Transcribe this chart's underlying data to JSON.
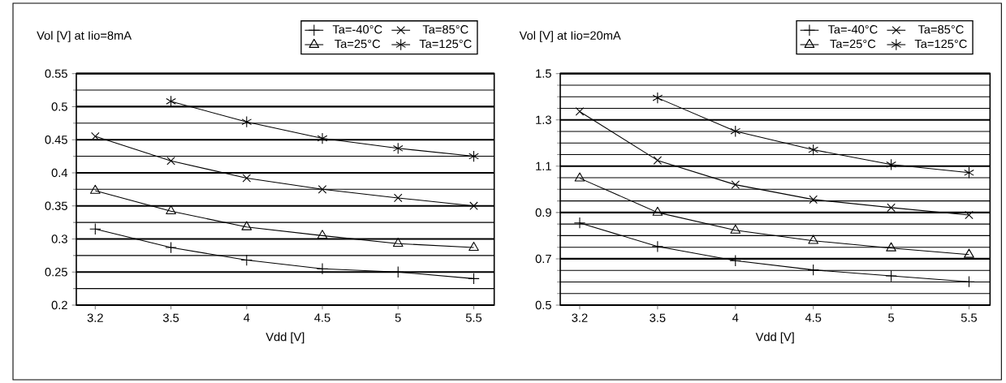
{
  "chart_data": [
    {
      "type": "line",
      "title": "Vol [V] at Iio=8mA",
      "xlabel": "Vdd [V]",
      "categories": [
        "3.2",
        "3.5",
        "4",
        "4.5",
        "5",
        "5.5"
      ],
      "ylim": [
        0.2,
        0.55
      ],
      "yticks": [
        0.2,
        0.25,
        0.3,
        0.35,
        0.4,
        0.45,
        0.5,
        0.55
      ],
      "grid": "y",
      "legend": "top right",
      "series": [
        {
          "name": "Ta=-40°C",
          "color": "#000000",
          "marker": "cross",
          "values": [
            0.315,
            0.287,
            0.268,
            0.255,
            0.25,
            0.24
          ]
        },
        {
          "name": "Ta=85°C",
          "color": "#000000",
          "marker": "cross",
          "values": [
            0.455,
            0.418,
            0.392,
            0.375,
            0.362,
            0.35
          ]
        },
        {
          "name": "Ta=25°C",
          "color": "#000000",
          "marker": "triangle",
          "values": [
            0.373,
            0.342,
            0.318,
            0.305,
            0.293,
            0.287
          ]
        },
        {
          "name": "Ta=125°C",
          "color": "#000000",
          "marker": "cross",
          "values": [
            null,
            0.508,
            0.477,
            0.452,
            0.437,
            0.425
          ]
        }
      ]
    },
    {
      "type": "line",
      "title": "Vol [V] at Iio=20mA",
      "xlabel": "Vdd [V]",
      "categories": [
        "3.2",
        "3.5",
        "4",
        "4.5",
        "5",
        "5.5"
      ],
      "ylim": [
        0.5,
        1.5
      ],
      "yticks": [
        0.5,
        0.7,
        0.9,
        1.1,
        1.3,
        1.5
      ],
      "grid": "y",
      "legend": "top right",
      "series": [
        {
          "name": "Ta=-40°C",
          "color": "#000000",
          "marker": "cross",
          "values": [
            0.855,
            0.753,
            0.692,
            0.652,
            0.626,
            0.601
          ]
        },
        {
          "name": "Ta=85°C",
          "color": "#000000",
          "marker": "cross",
          "values": [
            1.336,
            1.125,
            1.02,
            0.956,
            0.921,
            0.889
          ]
        },
        {
          "name": "Ta=25°C",
          "color": "#000000",
          "marker": "triangle",
          "values": [
            1.048,
            0.9,
            0.823,
            0.778,
            0.746,
            0.718
          ]
        },
        {
          "name": "Ta=125°C",
          "color": "#000000",
          "marker": "cross",
          "values": [
            null,
            1.395,
            1.251,
            1.171,
            1.107,
            1.072
          ]
        }
      ]
    }
  ]
}
